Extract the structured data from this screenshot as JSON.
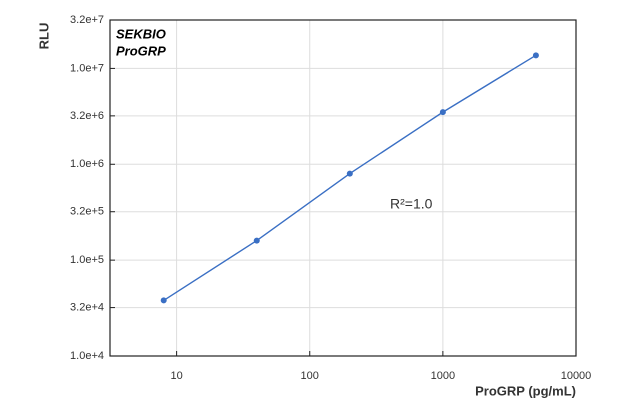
{
  "chart_data": {
    "type": "line",
    "annotations": [
      "SEKBIO",
      "ProGRP",
      "R²=1.0"
    ],
    "xlabel": "ProGRP (pg/mL)",
    "ylabel": "RLU",
    "x": [
      8,
      40,
      200,
      1000,
      5000
    ],
    "series": [
      {
        "color": "#3a6fc4",
        "values": [
          38000,
          160000,
          800000,
          3500000,
          13700000
        ]
      }
    ],
    "xscale": "log",
    "yscale": "log",
    "grid": true,
    "xlim": [
      3.16,
      10000
    ],
    "xticks": [
      10,
      100,
      1000,
      10000
    ],
    "ylim": [
      10000,
      32000000
    ],
    "yticks": [
      {
        "value": 10000,
        "label": "1.0e+4"
      },
      {
        "value": 32000,
        "label": "3.2e+4"
      },
      {
        "value": 100000,
        "label": "1.0e+5"
      },
      {
        "value": 320000,
        "label": "3.2e+5"
      },
      {
        "value": 1000000,
        "label": "1.0e+6"
      },
      {
        "value": 3200000,
        "label": "3.2e+6"
      },
      {
        "value": 10000000,
        "label": "1.0e+7"
      },
      {
        "value": 32000000,
        "label": "3.2e+7"
      }
    ]
  }
}
